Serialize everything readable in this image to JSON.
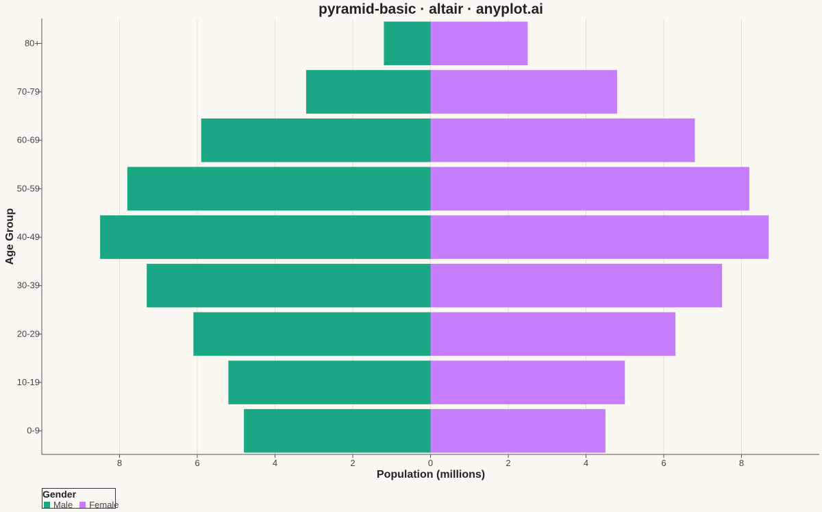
{
  "chart_data": {
    "type": "bar",
    "orientation": "horizontal-diverging",
    "title": "pyramid-basic · altair · anyplot.ai",
    "xlabel": "Population (millions)",
    "ylabel": "Age Group",
    "xlim": [
      -10,
      10
    ],
    "x_ticks": [
      -8,
      -6,
      -4,
      -2,
      0,
      2,
      4,
      6,
      8
    ],
    "x_tick_labels": [
      "8",
      "6",
      "4",
      "2",
      "0",
      "2",
      "4",
      "6",
      "8"
    ],
    "grid": true,
    "categories": [
      "80+",
      "70-79",
      "60-69",
      "50-59",
      "40-49",
      "30-39",
      "20-29",
      "10-19",
      "0-9"
    ],
    "series": [
      {
        "name": "Male",
        "color": "#1BA784",
        "side": "left",
        "values": [
          1.2,
          3.2,
          5.9,
          7.8,
          8.5,
          7.3,
          6.1,
          5.2,
          4.8
        ]
      },
      {
        "name": "Female",
        "color": "#C77EFC",
        "side": "right",
        "values": [
          2.5,
          4.8,
          6.8,
          8.2,
          8.7,
          7.5,
          6.3,
          5.0,
          4.5
        ]
      }
    ],
    "legend": {
      "title": "Gender",
      "placement": "bottom-left"
    }
  }
}
